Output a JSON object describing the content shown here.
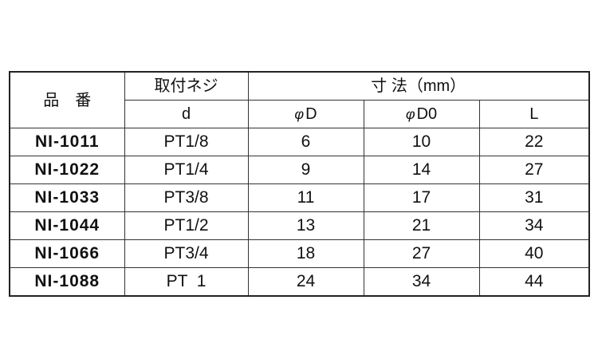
{
  "header": {
    "part_number": "品　番",
    "thread": "取付ネジ",
    "dimensions": "寸 法（mm）",
    "thread_sub": "d",
    "phi_symbol": "φ",
    "col_D": "D",
    "col_D0": "D0",
    "col_L": "L"
  },
  "rows": [
    {
      "part": "NI-1011",
      "d": "PT1/8",
      "D": "6",
      "D0": "10",
      "L": "22"
    },
    {
      "part": "NI-1022",
      "d": "PT1/4",
      "D": "9",
      "D0": "14",
      "L": "27"
    },
    {
      "part": "NI-1033",
      "d": "PT3/8",
      "D": "11",
      "D0": "17",
      "L": "31"
    },
    {
      "part": "NI-1044",
      "d": "PT1/2",
      "D": "13",
      "D0": "21",
      "L": "34"
    },
    {
      "part": "NI-1066",
      "d": "PT3/4",
      "D": "18",
      "D0": "27",
      "L": "40"
    },
    {
      "part": "NI-1088",
      "d": "PT  1",
      "D": "24",
      "D0": "34",
      "L": "44"
    }
  ]
}
